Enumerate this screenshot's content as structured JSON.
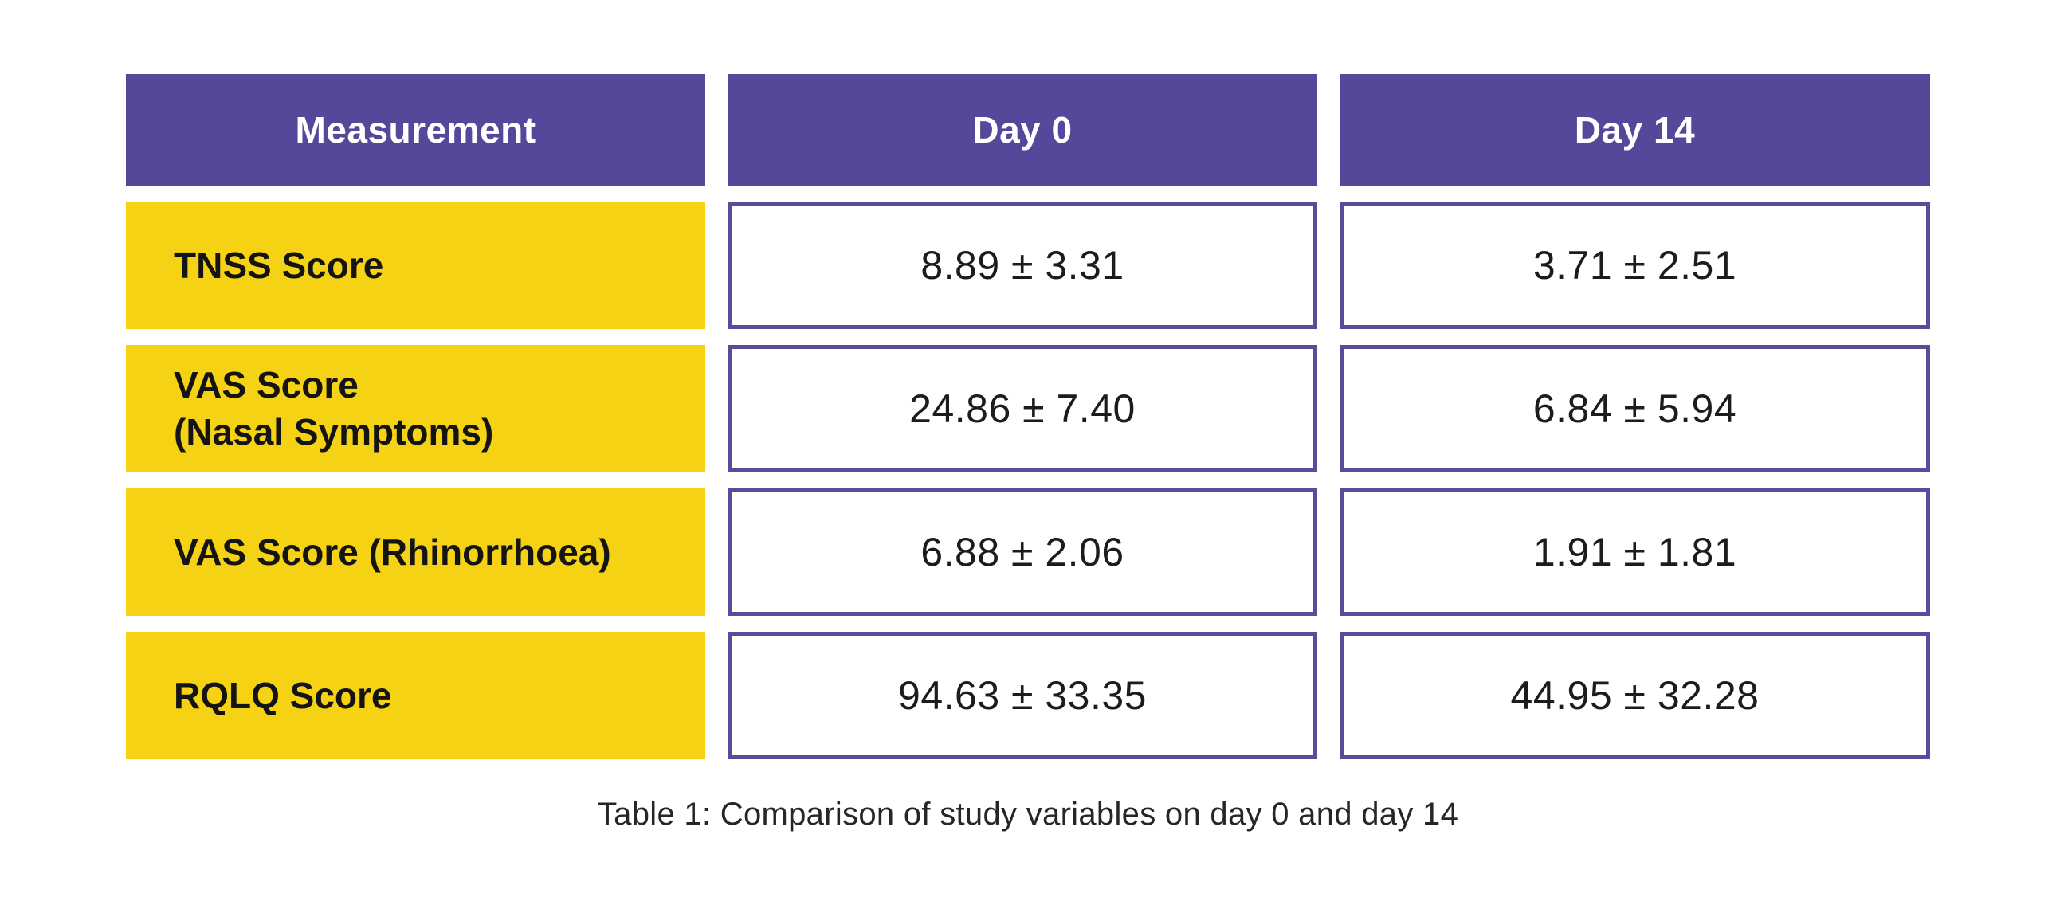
{
  "colors": {
    "header_bg": "#55489A",
    "header_text": "#FFFFFF",
    "label_bg": "#F6D214",
    "label_text": "#141414",
    "value_cell_border": "#584C9D",
    "value_text": "#1C1C1C",
    "caption_text": "#262626",
    "page_bg": "#FFFFFF"
  },
  "table": {
    "headers": [
      "Measurement",
      "Day 0",
      "Day 14"
    ],
    "rows": [
      {
        "label": "TNSS Score",
        "day0": "8.89 ± 3.31",
        "day14": "3.71 ± 2.51"
      },
      {
        "label": "VAS Score\n(Nasal Symptoms)",
        "day0": "24.86 ± 7.40",
        "day14": "6.84 ± 5.94"
      },
      {
        "label": "VAS Score (Rhinorrhoea)",
        "day0": "6.88 ± 2.06",
        "day14": "1.91 ± 1.81"
      },
      {
        "label": "RQLQ Score",
        "day0": "94.63 ± 33.35",
        "day14": "44.95 ± 32.28"
      }
    ],
    "caption": "Table 1: Comparison of study variables on day 0 and day 14"
  },
  "chart_data": {
    "type": "table",
    "title": "Table 1: Comparison of study variables on day 0 and day 14",
    "columns": [
      "Measurement",
      "Day 0",
      "Day 14"
    ],
    "rows": [
      [
        "TNSS Score",
        "8.89 ± 3.31",
        "3.71 ± 2.51"
      ],
      [
        "VAS Score (Nasal Symptoms)",
        "24.86 ± 7.40",
        "6.84 ± 5.94"
      ],
      [
        "VAS Score (Rhinorrhoea)",
        "6.88 ± 2.06",
        "1.91 ± 1.81"
      ],
      [
        "RQLQ Score",
        "94.63 ± 33.35",
        "44.95 ± 32.28"
      ]
    ],
    "categories": [
      "TNSS Score",
      "VAS Score (Nasal Symptoms)",
      "VAS Score (Rhinorrhoea)",
      "RQLQ Score"
    ],
    "series": [
      {
        "name": "Day 0",
        "mean": [
          8.89,
          24.86,
          6.88,
          94.63
        ],
        "sd": [
          3.31,
          7.4,
          2.06,
          33.35
        ]
      },
      {
        "name": "Day 14",
        "mean": [
          3.71,
          6.84,
          1.91,
          44.95
        ],
        "sd": [
          2.51,
          5.94,
          1.81,
          32.28
        ]
      }
    ]
  }
}
